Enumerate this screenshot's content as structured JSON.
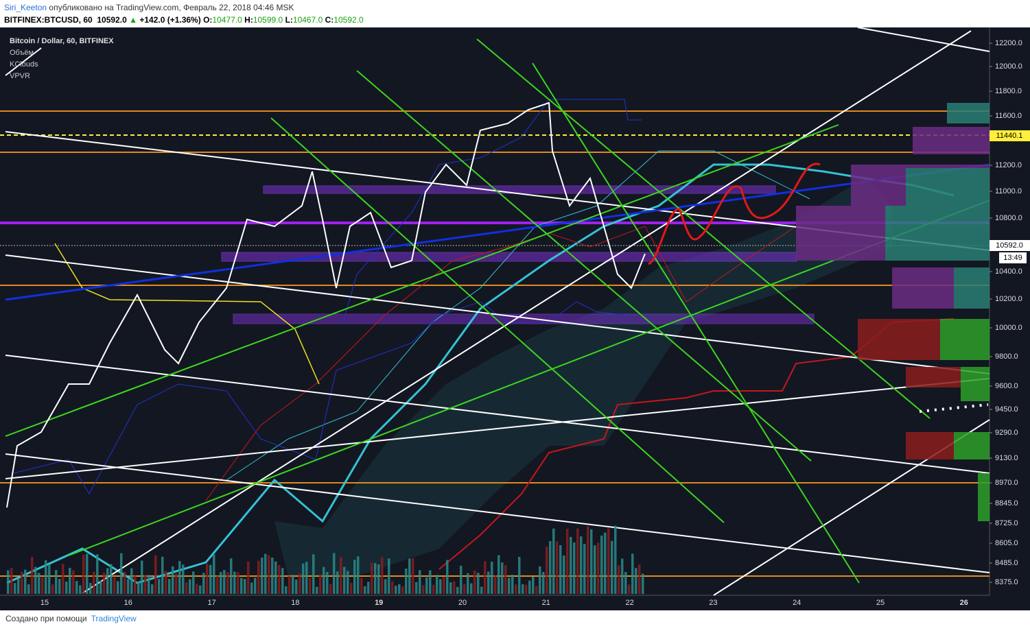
{
  "header": {
    "author": "Siri_Keeton",
    "published": "опубликовано на TradingView.com, Февраль 22, 2018 04:46 MSK",
    "symbol": "BITFINEX:BTCUSD, 60",
    "last": "10592.0",
    "change": "+142.0 (+1.36%)",
    "open_label": "O:",
    "open": "10477.0",
    "high_label": "H:",
    "high": "10599.0",
    "low_label": "L:",
    "low": "10467.0",
    "close_label": "C:",
    "close": "10592.0"
  },
  "legend": [
    "Bitcoin / Dollar, 60, BITFINEX",
    "Объём",
    "KClouds",
    "VPVR"
  ],
  "price_axis": [
    "12200.0",
    "12000.0",
    "11800.0",
    "11600.0",
    "11200.0",
    "11000.0",
    "10800.0",
    "10400.0",
    "10200.0",
    "10000.0",
    "9800.0",
    "9600.0",
    "9450.0",
    "9290.0",
    "9130.0",
    "8970.0",
    "8845.0",
    "8725.0",
    "8605.0",
    "8485.0",
    "8375.0"
  ],
  "badges": {
    "alert": "11440.1",
    "price": "10592.0",
    "countdown": "13:49"
  },
  "time_axis": [
    "15",
    "16",
    "17",
    "18",
    "19",
    "20",
    "21",
    "22",
    "23",
    "24",
    "25",
    "26"
  ],
  "footer": {
    "made_with": "Создано при помощи",
    "brand": "TradingView"
  }
}
